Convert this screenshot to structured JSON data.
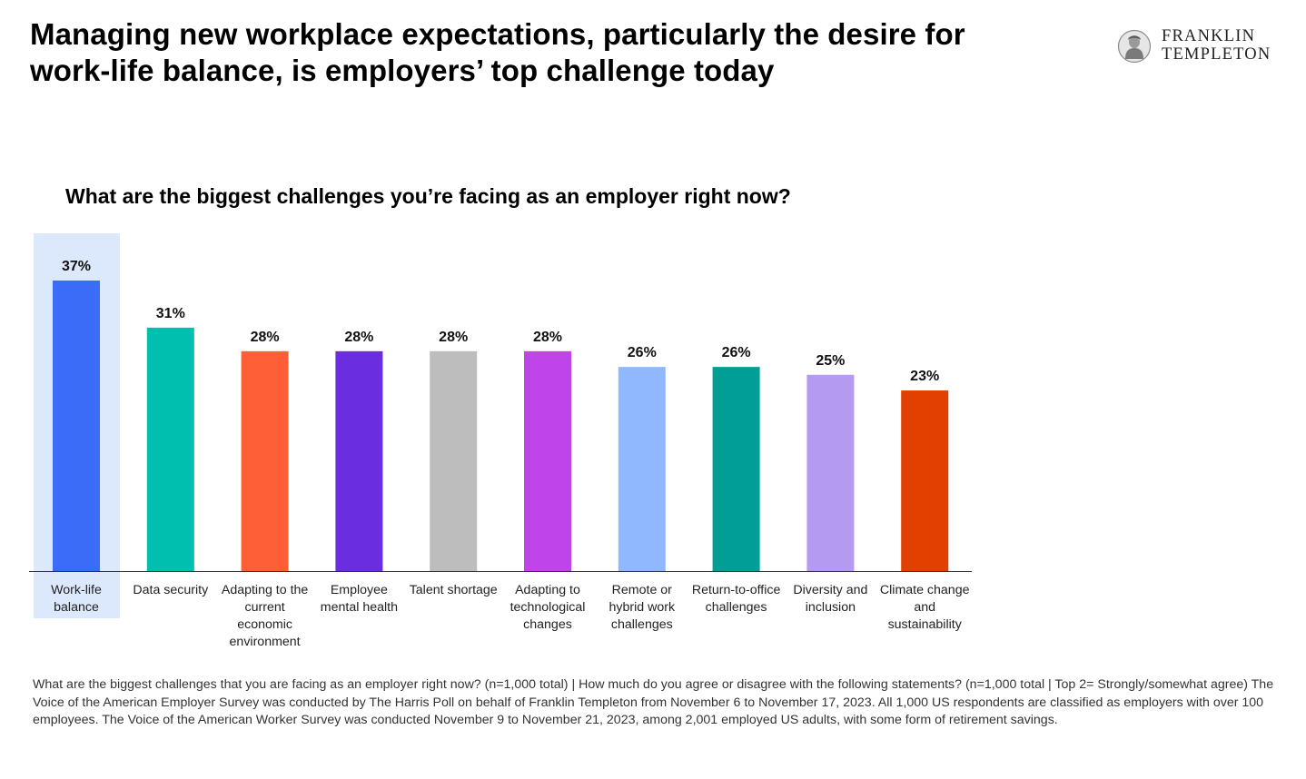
{
  "headline": "Managing new workplace expectations, particularly the desire for work-life balance, is employers’ top challenge today",
  "logo": {
    "line1": "FRANKLIN",
    "line2": "TEMPLETON"
  },
  "question": "What are the biggest challenges you’re facing as an employer right now?",
  "chart_data": {
    "type": "bar",
    "title": "What are the biggest challenges you’re facing as an employer right now?",
    "categories": [
      [
        "Work-life",
        "balance"
      ],
      [
        "Data security"
      ],
      [
        "Adapting to the",
        "current",
        "economic",
        "environment"
      ],
      [
        "Employee",
        "mental health"
      ],
      [
        "Talent shortage"
      ],
      [
        "Adapting to",
        "technological",
        "changes"
      ],
      [
        "Remote or",
        "hybrid work",
        "challenges"
      ],
      [
        "Return-to-office",
        "challenges"
      ],
      [
        "Diversity and",
        "inclusion"
      ],
      [
        "Climate change",
        "and",
        "sustainability"
      ]
    ],
    "values": [
      37,
      31,
      28,
      28,
      28,
      28,
      26,
      26,
      25,
      23
    ],
    "value_labels": [
      "37%",
      "31%",
      "28%",
      "28%",
      "28%",
      "28%",
      "26%",
      "26%",
      "25%",
      "23%"
    ],
    "colors": [
      "#3a6cf7",
      "#00bfae",
      "#ff5f36",
      "#6a2ee0",
      "#bdbdbd",
      "#bf44ea",
      "#8fb8ff",
      "#009e95",
      "#b59af2",
      "#e24000"
    ],
    "highlight_index": 0,
    "highlight_color": "#dce8fc",
    "ylim": [
      0,
      37
    ],
    "grid": false,
    "xlabel": "",
    "ylabel": ""
  },
  "footnote": "What are the biggest challenges that you are facing as an employer right now? (n=1,000 total) | How much do you agree or disagree with the following statements? (n=1,000 total | Top 2= Strongly/somewhat agree)  The Voice of the American Employer Survey was conducted by The Harris Poll on behalf of Franklin Templeton from November 6 to November 17, 2023. All 1,000 US respondents are classified as employers with over 100 employees. The Voice of the American Worker Survey was conducted November 9 to November 21, 2023, among 2,001 employed US adults, with some form of retirement savings."
}
